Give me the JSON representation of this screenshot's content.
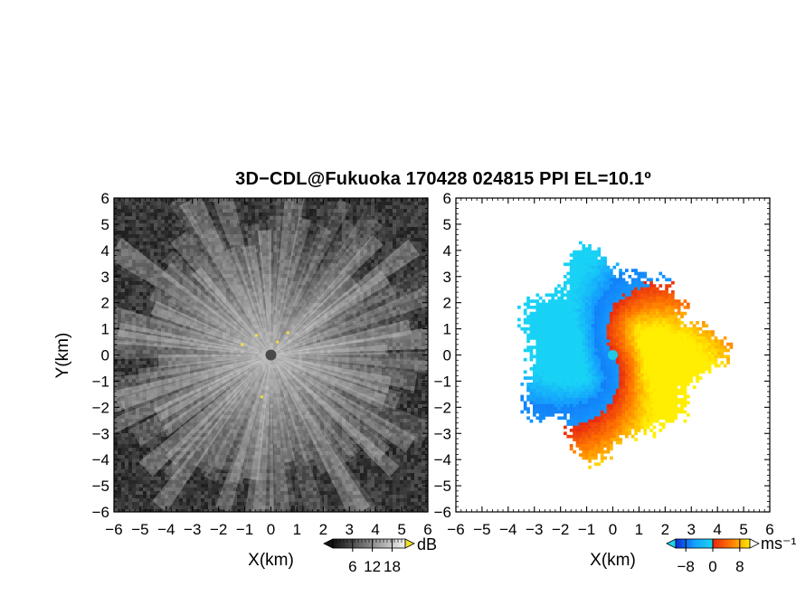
{
  "figure": {
    "title": "3D−CDL@Fukuoka 170428 024815 PPI EL=10.1º",
    "colors": {
      "background": "#ffffff",
      "axis": "#000000"
    }
  },
  "chart_data": [
    {
      "type": "heatmap",
      "panel": "left",
      "variable": "reflectivity",
      "xlabel": "X(km)",
      "ylabel": "Y(km)",
      "xlim": [
        -6,
        6
      ],
      "ylim": [
        -6,
        6
      ],
      "x_ticks": [
        "−6",
        "−5",
        "−4",
        "−3",
        "−2",
        "−1",
        "0",
        "1",
        "2",
        "3",
        "4",
        "5",
        "6"
      ],
      "y_ticks": [
        "−6",
        "−5",
        "−4",
        "−3",
        "−2",
        "−1",
        "0",
        "1",
        "2",
        "3",
        "4",
        "5",
        "6"
      ],
      "colormap": "grayscale",
      "colorbar": {
        "unit": "dB",
        "ticks": [
          "6",
          "12",
          "18"
        ],
        "tick_values": [
          6,
          12,
          18
        ],
        "range": [
          0,
          22
        ]
      },
      "description_features": {
        "radial_streaks": true,
        "center_dot": [
          0,
          0
        ]
      }
    },
    {
      "type": "heatmap",
      "panel": "right",
      "variable": "doppler_velocity",
      "xlabel": "X(km)",
      "ylabel": "",
      "xlim": [
        -6,
        6
      ],
      "ylim": [
        -6,
        6
      ],
      "x_ticks": [
        "−6",
        "−5",
        "−4",
        "−3",
        "−2",
        "−1",
        "0",
        "1",
        "2",
        "3",
        "4",
        "5",
        "6"
      ],
      "y_ticks": [
        "−6",
        "−5",
        "−4",
        "−3",
        "−2",
        "−1",
        "0",
        "1",
        "2",
        "3",
        "4",
        "5",
        "6"
      ],
      "colormap": "blue-cyan-red-yellow",
      "colorbar": {
        "unit": "ms⁻¹",
        "ticks": [
          "−8",
          "0",
          "8"
        ],
        "tick_values": [
          -8,
          0,
          8
        ],
        "range": [
          -11,
          11
        ]
      },
      "data_extent_km": 4.6,
      "center_marker_color": "#1ec8e8"
    }
  ]
}
